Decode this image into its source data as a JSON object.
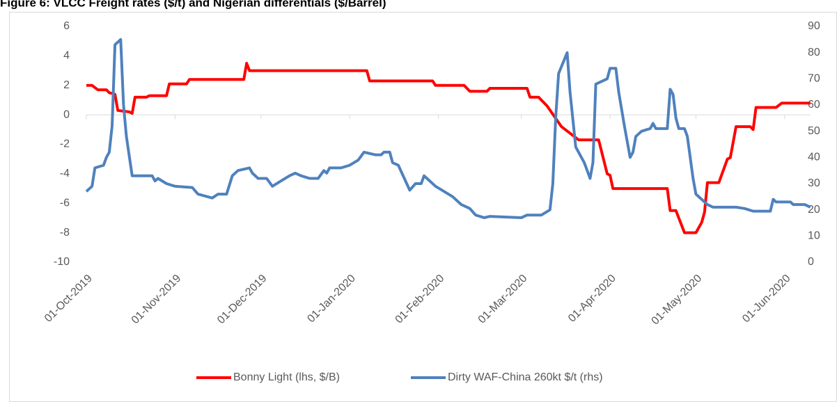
{
  "chart_data": {
    "type": "line",
    "title": "Figure 6: VLCC Freight rates ($/t) and Nigerian differentials ($/Barrel)",
    "ylim": [
      -10,
      6
    ],
    "yticks": [
      -10,
      -8,
      -6,
      -4,
      -2,
      0,
      2,
      4,
      6
    ],
    "y2lim": [
      0,
      90
    ],
    "y2ticks": [
      0,
      10,
      20,
      30,
      40,
      50,
      60,
      70,
      80,
      90
    ],
    "xlim": [
      "2019-10-01",
      "2020-06-10"
    ],
    "xticks": [
      {
        "value": "2019-10-01",
        "label": "01-Oct-2019"
      },
      {
        "value": "2019-11-01",
        "label": "01-Nov-2019"
      },
      {
        "value": "2019-12-01",
        "label": "01-Dec-2019"
      },
      {
        "value": "2020-01-01",
        "label": "01-Jan-2020"
      },
      {
        "value": "2020-02-01",
        "label": "01-Feb-2020"
      },
      {
        "value": "2020-03-01",
        "label": "01-Mar-2020"
      },
      {
        "value": "2020-04-01",
        "label": "01-Apr-2020"
      },
      {
        "value": "2020-05-01",
        "label": "01-May-2020"
      },
      {
        "value": "2020-06-01",
        "label": "01-Jun-2020"
      }
    ],
    "legend": "bottom",
    "series": [
      {
        "name": "Bonny Light (lhs, $/B)",
        "color": "#ff0000",
        "axis": "y",
        "x": [
          "2019-10-01",
          "2019-10-03",
          "2019-10-05",
          "2019-10-08",
          "2019-10-09",
          "2019-10-11",
          "2019-10-12",
          "2019-10-16",
          "2019-10-17",
          "2019-10-18",
          "2019-10-22",
          "2019-10-23",
          "2019-10-29",
          "2019-10-30",
          "2019-11-05",
          "2019-11-06",
          "2019-11-25",
          "2019-11-26",
          "2019-11-27",
          "2020-01-07",
          "2020-01-08",
          "2020-01-30",
          "2020-01-31",
          "2020-02-10",
          "2020-02-12",
          "2020-02-18",
          "2020-02-19",
          "2020-03-03",
          "2020-03-04",
          "2020-03-07",
          "2020-03-10",
          "2020-03-15",
          "2020-03-21",
          "2020-03-28",
          "2020-03-31",
          "2020-04-01",
          "2020-04-02",
          "2020-04-21",
          "2020-04-22",
          "2020-04-24",
          "2020-04-27",
          "2020-05-01",
          "2020-05-03",
          "2020-05-04",
          "2020-05-05",
          "2020-05-09",
          "2020-05-12",
          "2020-05-13",
          "2020-05-15",
          "2020-05-20",
          "2020-05-21",
          "2020-05-22",
          "2020-05-29",
          "2020-05-31",
          "2020-06-10"
        ],
        "values": [
          2.0,
          2.0,
          1.7,
          1.7,
          1.5,
          1.4,
          0.3,
          0.2,
          0.1,
          1.2,
          1.2,
          1.3,
          1.3,
          2.1,
          2.1,
          2.4,
          2.4,
          3.5,
          3.0,
          3.0,
          2.3,
          2.3,
          2.0,
          2.0,
          1.6,
          1.6,
          1.8,
          1.8,
          1.2,
          1.2,
          0.6,
          -0.8,
          -1.7,
          -1.7,
          -4.0,
          -4.1,
          -5.0,
          -5.0,
          -6.5,
          -6.5,
          -8.0,
          -8.0,
          -7.3,
          -6.6,
          -4.6,
          -4.6,
          -3.0,
          -2.9,
          -0.8,
          -0.8,
          -1.0,
          0.5,
          0.5,
          0.8,
          0.8
        ]
      },
      {
        "name": "Dirty WAF-China 260kt $/t (rhs)",
        "color": "#4f81bd",
        "axis": "y2",
        "x": [
          "2019-10-01",
          "2019-10-03",
          "2019-10-04",
          "2019-10-07",
          "2019-10-08",
          "2019-10-09",
          "2019-10-10",
          "2019-10-11",
          "2019-10-13",
          "2019-10-14",
          "2019-10-15",
          "2019-10-17",
          "2019-10-24",
          "2019-10-25",
          "2019-10-26",
          "2019-10-29",
          "2019-11-01",
          "2019-11-07",
          "2019-11-09",
          "2019-11-14",
          "2019-11-16",
          "2019-11-19",
          "2019-11-21",
          "2019-11-23",
          "2019-11-27",
          "2019-11-28",
          "2019-11-30",
          "2019-12-03",
          "2019-12-05",
          "2019-12-08",
          "2019-12-11",
          "2019-12-13",
          "2019-12-15",
          "2019-12-18",
          "2019-12-21",
          "2019-12-23",
          "2019-12-24",
          "2019-12-25",
          "2019-12-29",
          "2020-01-01",
          "2020-01-04",
          "2020-01-06",
          "2020-01-08",
          "2020-01-10",
          "2020-01-12",
          "2020-01-13",
          "2020-01-15",
          "2020-01-16",
          "2020-01-18",
          "2020-01-22",
          "2020-01-24",
          "2020-01-26",
          "2020-01-27",
          "2020-01-28",
          "2020-01-31",
          "2020-02-03",
          "2020-02-06",
          "2020-02-09",
          "2020-02-12",
          "2020-02-14",
          "2020-02-17",
          "2020-02-19",
          "2020-03-01",
          "2020-03-03",
          "2020-03-08",
          "2020-03-11",
          "2020-03-12",
          "2020-03-13",
          "2020-03-14",
          "2020-03-17",
          "2020-03-18",
          "2020-03-20",
          "2020-03-23",
          "2020-03-25",
          "2020-03-26",
          "2020-03-27",
          "2020-03-31",
          "2020-04-01",
          "2020-04-03",
          "2020-04-04",
          "2020-04-06",
          "2020-04-08",
          "2020-04-09",
          "2020-04-10",
          "2020-04-12",
          "2020-04-15",
          "2020-04-16",
          "2020-04-17",
          "2020-04-21",
          "2020-04-22",
          "2020-04-23",
          "2020-04-24",
          "2020-04-25",
          "2020-04-27",
          "2020-04-28",
          "2020-04-30",
          "2020-05-01",
          "2020-05-05",
          "2020-05-07",
          "2020-05-15",
          "2020-05-18",
          "2020-05-21",
          "2020-05-27",
          "2020-05-28",
          "2020-05-29",
          "2020-06-03",
          "2020-06-04",
          "2020-06-08",
          "2020-06-10"
        ],
        "values": [
          27,
          29,
          36,
          37,
          40,
          42,
          52,
          83,
          85,
          60,
          48,
          33,
          33,
          31,
          32,
          30,
          29,
          28.5,
          26,
          24.5,
          26,
          26,
          33,
          35,
          36,
          34,
          32,
          32,
          29,
          31,
          33,
          34,
          33,
          32,
          32,
          35,
          34,
          36,
          36,
          37,
          39,
          42,
          41.5,
          41,
          41,
          42,
          42,
          38,
          37,
          27.5,
          30,
          30,
          33,
          32,
          29,
          27,
          25,
          22,
          20.5,
          18,
          17,
          17.5,
          17,
          18,
          18,
          20,
          30,
          55,
          72,
          80,
          65,
          44,
          38,
          32,
          38,
          68,
          70,
          74,
          74,
          65,
          52,
          40,
          42,
          48,
          50,
          51,
          53,
          51,
          51,
          66,
          64,
          55,
          51,
          51,
          48,
          32,
          26,
          22,
          21,
          21,
          20.5,
          19.5,
          19.5,
          24,
          23,
          23,
          22,
          22,
          21
        ]
      }
    ]
  }
}
